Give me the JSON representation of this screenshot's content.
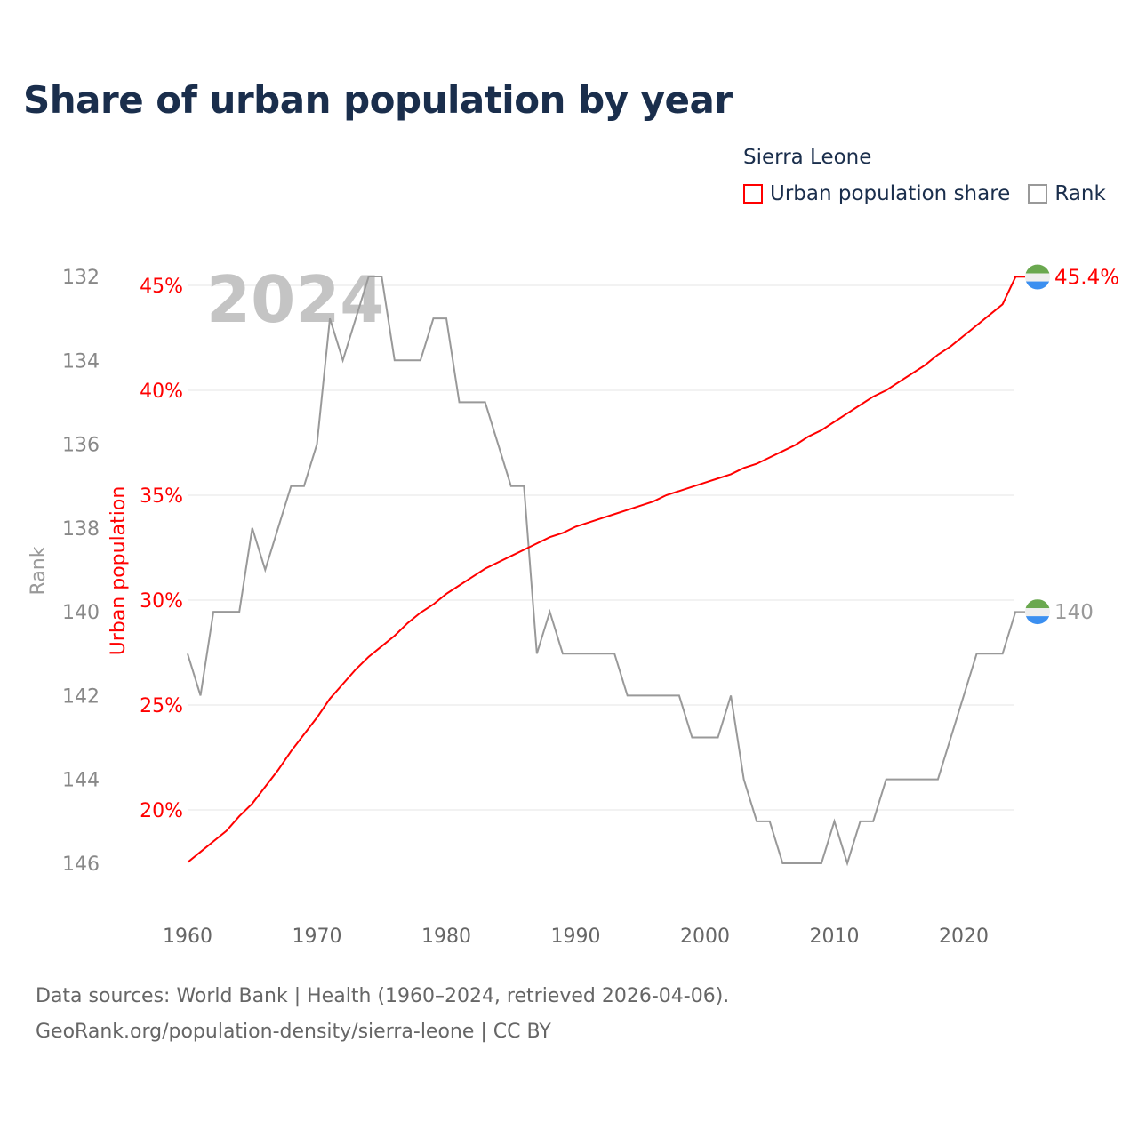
{
  "title": "Share of urban population by year",
  "legend": {
    "country": "Sierra Leone",
    "items": [
      {
        "label": "Urban population share",
        "color": "#ff0000"
      },
      {
        "label": "Rank",
        "color": "#999999"
      }
    ]
  },
  "year_watermark": "2024",
  "footer": {
    "line1": "Data sources: World Bank | Health (1960–2024, retrieved 2026-04-06).",
    "line2": "GeoRank.org/population-density/sierra-leone | CC BY"
  },
  "chart_data": {
    "type": "line",
    "title": "Share of urban population by year",
    "x": [
      1960,
      1961,
      1962,
      1963,
      1964,
      1965,
      1966,
      1967,
      1968,
      1969,
      1970,
      1971,
      1972,
      1973,
      1974,
      1975,
      1976,
      1977,
      1978,
      1979,
      1980,
      1981,
      1982,
      1983,
      1984,
      1985,
      1986,
      1987,
      1988,
      1989,
      1990,
      1991,
      1992,
      1993,
      1994,
      1995,
      1996,
      1997,
      1998,
      1999,
      2000,
      2001,
      2002,
      2003,
      2004,
      2005,
      2006,
      2007,
      2008,
      2009,
      2010,
      2011,
      2012,
      2013,
      2014,
      2015,
      2016,
      2017,
      2018,
      2019,
      2020,
      2021,
      2022,
      2023,
      2024
    ],
    "series": [
      {
        "name": "Urban population share",
        "axis": "left-inner",
        "color": "#ff0000",
        "unit": "%",
        "values": [
          17.5,
          18.0,
          18.5,
          19.0,
          19.7,
          20.3,
          21.1,
          21.9,
          22.8,
          23.6,
          24.4,
          25.3,
          26.0,
          26.7,
          27.3,
          27.8,
          28.3,
          28.9,
          29.4,
          29.8,
          30.3,
          30.7,
          31.1,
          31.5,
          31.8,
          32.1,
          32.4,
          32.7,
          33.0,
          33.2,
          33.5,
          33.7,
          33.9,
          34.1,
          34.3,
          34.5,
          34.7,
          35.0,
          35.2,
          35.4,
          35.6,
          35.8,
          36.0,
          36.3,
          36.5,
          36.8,
          37.1,
          37.4,
          37.8,
          38.1,
          38.5,
          38.9,
          39.3,
          39.7,
          40.0,
          40.4,
          40.8,
          41.2,
          41.7,
          42.1,
          42.6,
          43.1,
          43.6,
          44.1,
          45.4
        ],
        "end_label": "45.4%"
      },
      {
        "name": "Rank",
        "axis": "left-outer",
        "color": "#999999",
        "values": [
          141,
          142,
          140,
          140,
          140,
          138,
          139,
          138,
          137,
          137,
          136,
          133,
          134,
          133,
          132,
          132,
          134,
          134,
          134,
          133,
          133,
          135,
          135,
          135,
          136,
          137,
          137,
          141,
          140,
          141,
          141,
          141,
          141,
          141,
          142,
          142,
          142,
          142,
          142,
          143,
          143,
          143,
          142,
          144,
          145,
          145,
          146,
          146,
          146,
          146,
          145,
          146,
          145,
          145,
          144,
          144,
          144,
          144,
          144,
          143,
          142,
          141,
          141,
          141,
          140
        ],
        "end_label": "140"
      }
    ],
    "xlabel": "",
    "xticks": [
      "1960",
      "1970",
      "1980",
      "1990",
      "2000",
      "2010",
      "2020"
    ],
    "xlim": [
      1960,
      2024
    ],
    "y_urban": {
      "label": "Urban population",
      "ticks": [
        "20%",
        "25%",
        "30%",
        "35%",
        "40%",
        "45%"
      ],
      "tick_values": [
        20,
        25,
        30,
        35,
        40,
        45
      ]
    },
    "y_rank": {
      "label": "Rank",
      "ticks": [
        "132",
        "134",
        "136",
        "138",
        "140",
        "142",
        "144",
        "146"
      ],
      "tick_values": [
        132,
        134,
        136,
        138,
        140,
        142,
        144,
        146
      ],
      "inverted": true
    },
    "grid": true,
    "legend_position": "top-right"
  }
}
